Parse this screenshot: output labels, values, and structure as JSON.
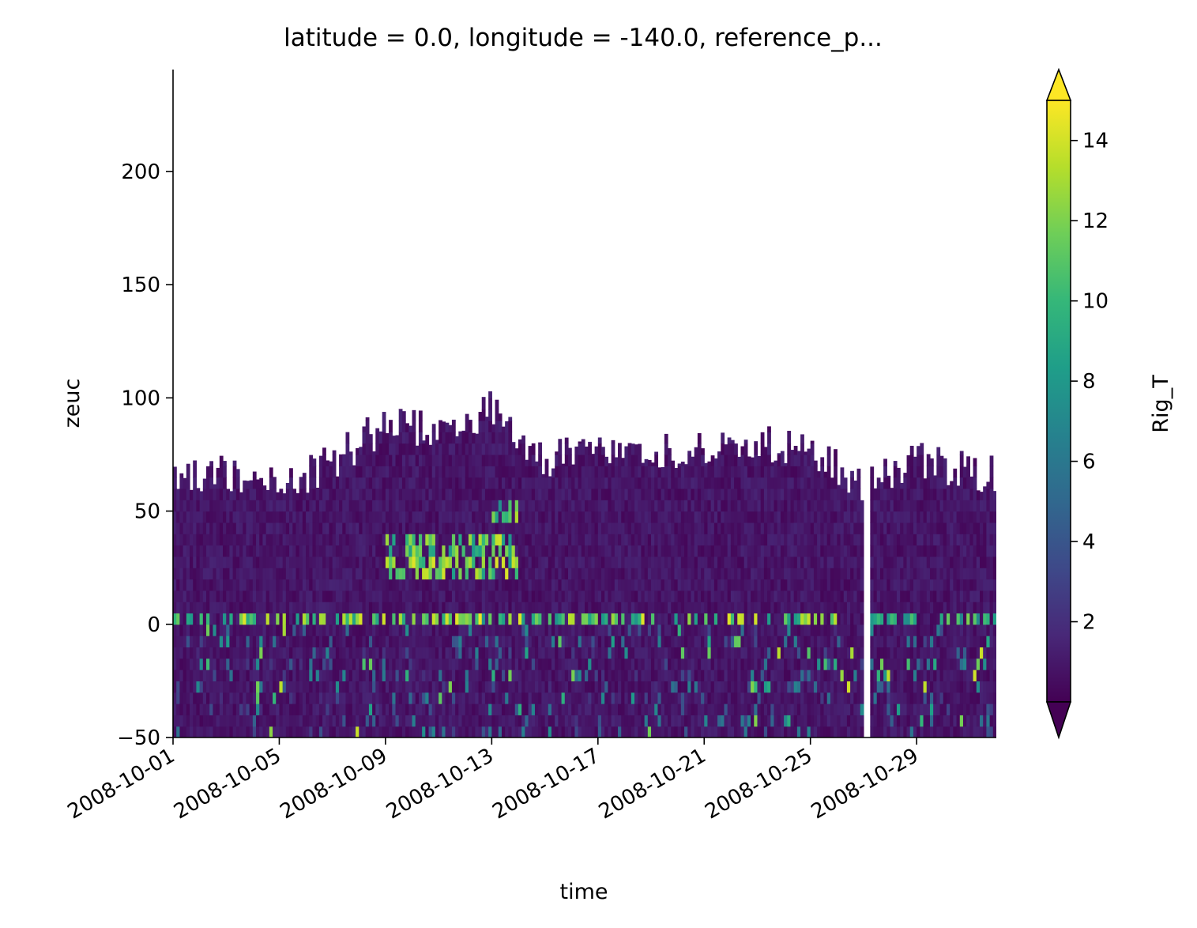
{
  "chart_data": {
    "type": "heatmap",
    "title": "latitude = 0.0, longitude = -140.0, reference_p...",
    "xlabel": "time",
    "ylabel": "zeuc",
    "x_ticks": [
      "2008-10-01",
      "2008-10-05",
      "2008-10-09",
      "2008-10-13",
      "2008-10-17",
      "2008-10-21",
      "2008-10-25",
      "2008-10-29"
    ],
    "x_range": [
      "2008-10-01",
      "2008-11-01"
    ],
    "y_ticks": [
      -50,
      0,
      50,
      100,
      150,
      200
    ],
    "ylim": [
      -50,
      245
    ],
    "colorbar": {
      "label": "Rig_T",
      "colormap": "viridis",
      "range": [
        0,
        15
      ],
      "ticks": [
        2,
        4,
        6,
        8,
        10,
        12,
        14
      ],
      "extend": "both"
    },
    "data_gap": [
      "2008-10-26",
      "2008-10-27"
    ],
    "upper_envelope_zeuc": [
      {
        "date": "2008-10-01",
        "zeuc": 65
      },
      {
        "date": "2008-10-03",
        "zeuc": 65
      },
      {
        "date": "2008-10-05",
        "zeuc": 60
      },
      {
        "date": "2008-10-07",
        "zeuc": 70
      },
      {
        "date": "2008-10-09",
        "zeuc": 88
      },
      {
        "date": "2008-10-11",
        "zeuc": 83
      },
      {
        "date": "2008-10-13",
        "zeuc": 95
      },
      {
        "date": "2008-10-15",
        "zeuc": 70
      },
      {
        "date": "2008-10-17",
        "zeuc": 75
      },
      {
        "date": "2008-10-19",
        "zeuc": 72
      },
      {
        "date": "2008-10-21",
        "zeuc": 78
      },
      {
        "date": "2008-10-23",
        "zeuc": 78
      },
      {
        "date": "2008-10-25",
        "zeuc": 75
      },
      {
        "date": "2008-10-27",
        "zeuc": 60
      },
      {
        "date": "2008-10-29",
        "zeuc": 72
      },
      {
        "date": "2008-10-31",
        "zeuc": 65
      }
    ],
    "high_value_features": [
      {
        "date_start": "2008-10-01",
        "date_end": "2008-10-26",
        "zeuc_min": 0,
        "zeuc_max": 5,
        "Rig_T": 14
      },
      {
        "date_start": "2008-10-27",
        "date_end": "2008-11-01",
        "zeuc_min": 0,
        "zeuc_max": 5,
        "Rig_T": 12
      },
      {
        "date_start": "2008-10-09",
        "date_end": "2008-10-14",
        "zeuc_min": 22,
        "zeuc_max": 40,
        "Rig_T": 14
      },
      {
        "date_start": "2008-10-13",
        "date_end": "2008-10-14",
        "zeuc_min": 45,
        "zeuc_max": 55,
        "Rig_T": 13
      },
      {
        "date_start": "2008-10-27",
        "date_end": "2008-10-28",
        "zeuc_min": -25,
        "zeuc_max": -15,
        "Rig_T": 14
      }
    ]
  }
}
